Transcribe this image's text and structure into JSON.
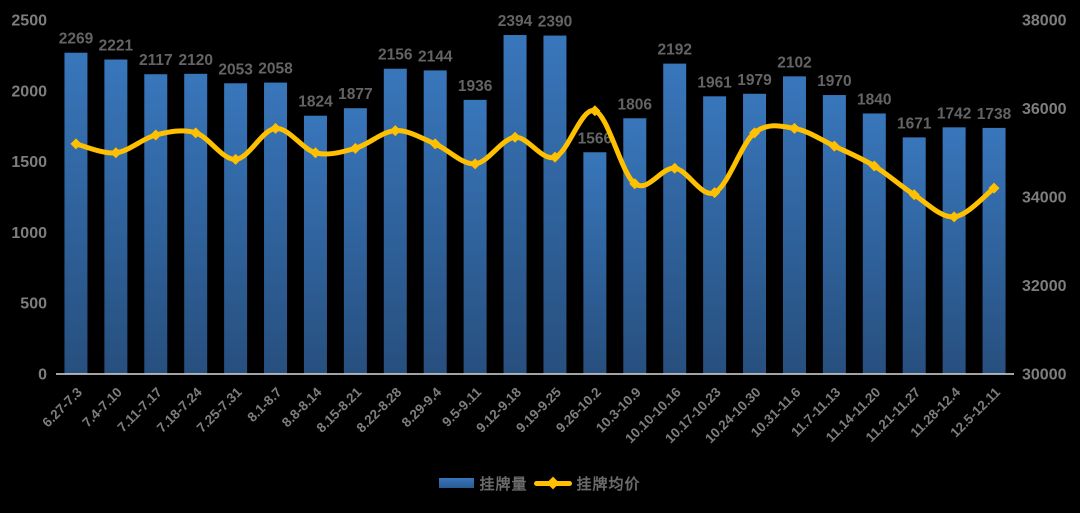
{
  "chart": {
    "background": "#000000",
    "colors": {
      "bar_top": "#3876BB",
      "bar_bottom": "#274F7E",
      "line": "#FFC000",
      "data_label": "#646464",
      "axis_label": "#7E7E7E",
      "baseline": "#D9D9D9",
      "legend_text": "#6B6B6B"
    },
    "legend": {
      "bar_label": "挂牌量",
      "line_label": "挂牌均价"
    }
  },
  "chart_data": {
    "type": "bar",
    "combo": "bar+line dual-axis",
    "title": "",
    "xlabel": "",
    "ylabel_left": "",
    "ylabel_right": "",
    "grid": false,
    "legend_position": "bottom",
    "categories": [
      "6.27-7.3",
      "7.4-7.10",
      "7.11-7.17",
      "7.18-7.24",
      "7.25-7.31",
      "8.1-8.7",
      "8.8-8.14",
      "8.15-8.21",
      "8.22-8.28",
      "8.29-9.4",
      "9.5-9.11",
      "9.12-9.18",
      "9.19-9.25",
      "9.26-10.2",
      "10.3-10.9",
      "10.10-10.16",
      "10.17-10.23",
      "10.24-10.30",
      "10.31-11.6",
      "11.7-11.13",
      "11.14-11.20",
      "11.21-11.27",
      "11.28-12.4",
      "12.5-12.11"
    ],
    "series": [
      {
        "name": "挂牌量",
        "type": "bar",
        "axis": "left",
        "values": [
          2269,
          2221,
          2117,
          2120,
          2053,
          2058,
          1824,
          1877,
          2156,
          2144,
          1936,
          2394,
          2390,
          1566,
          1806,
          2192,
          1961,
          1979,
          2102,
          1970,
          1840,
          1671,
          1742,
          1738
        ]
      },
      {
        "name": "挂牌均价",
        "type": "line",
        "axis": "right",
        "values": [
          35200,
          35000,
          35400,
          35450,
          34850,
          35550,
          35000,
          35100,
          35500,
          35200,
          34750,
          35350,
          34900,
          35950,
          34300,
          34650,
          34100,
          35450,
          35550,
          35150,
          34700,
          34050,
          33550,
          34200
        ]
      }
    ],
    "left_axis": {
      "min": 0,
      "max": 2500,
      "step": 500,
      "ticks": [
        "2500",
        "2000",
        "1500",
        "1000",
        "500",
        "0"
      ]
    },
    "right_axis": {
      "min": 30000,
      "max": 38000,
      "step": 2000,
      "ticks": [
        "38000",
        "36000",
        "34000",
        "32000",
        "30000"
      ]
    }
  }
}
